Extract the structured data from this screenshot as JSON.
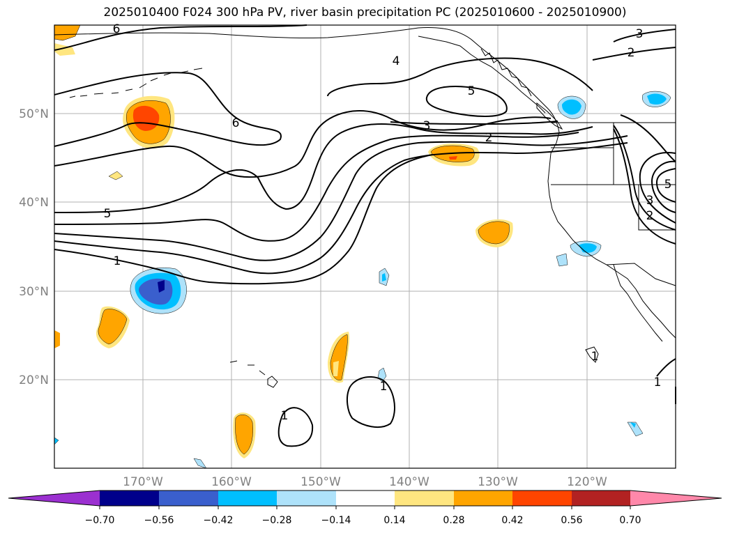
{
  "title": "2025010400 F024 300 hPa PV, river basin precipitation PC (2025010600 - 2025010900)",
  "map": {
    "lon_labels": [
      "170°W",
      "160°W",
      "150°W",
      "140°W",
      "130°W",
      "120°W"
    ],
    "lat_labels": [
      "50°N",
      "40°N",
      "30°N",
      "20°N"
    ],
    "contour_labels": [
      "6",
      "6",
      "5",
      "4",
      "5",
      "3",
      "2",
      "3",
      "2",
      "1",
      "1",
      "1",
      "1",
      "1",
      "2",
      "3",
      "5"
    ],
    "fill_colors": {
      "purple": "#9b30d0",
      "navy": "#00008b",
      "royal": "#3a5fcd",
      "sky": "#00bfff",
      "pale_blue": "#aee2fa",
      "white": "#ffffff",
      "pale_yellow": "#ffe680",
      "orange": "#ffa500",
      "orange_red": "#ff4500",
      "dark_red": "#b22222",
      "pink": "#ff88aa"
    }
  },
  "colorbar": {
    "ticks": [
      "−0.70",
      "−0.56",
      "−0.42",
      "−0.28",
      "−0.14",
      "0.14",
      "0.28",
      "0.42",
      "0.56",
      "0.70"
    ]
  }
}
